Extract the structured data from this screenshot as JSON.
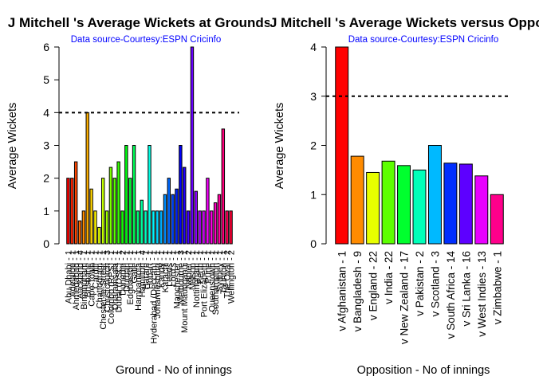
{
  "chart_data": [
    {
      "type": "bar",
      "title": "J Mitchell 's Average Wickets at Grounds",
      "subtitle": "Data source-Courtesy:ESPN Cricinfo",
      "xlabel": "Ground - No of innings",
      "ylabel": "Average Wickets",
      "ylim": [
        0,
        6
      ],
      "yticks": [
        "0",
        "1",
        "2",
        "3",
        "4",
        "5",
        "6"
      ],
      "reference_line": 4,
      "categories": [
        "Abu Dhabi - 1",
        "Adelaide - 1",
        "Ahmedabad - 1",
        "Auckland - 4",
        "Birmingham - 1",
        "Brisbane - 1",
        "Cape Town - 1",
        "Cardiff - 1",
        "Chattogram - 1",
        "Chester-le-Street - 1",
        "Christchurch - 3",
        "Colombo (RPS) - 1",
        "Dharamsala - 1",
        "Dubai (DSC) - 1",
        "Dunedin - 2",
        "Durban - 1",
        "Edgbaston - 1",
        "Galle - 1",
        "Hambantota - 1",
        "Hamilton - 4",
        "Harare - 1",
        "Hobart - 1",
        "Hyderabad (Deccan) - 1",
        "Johannesburg - 1",
        "Kandy - 1",
        "Karachi - 1",
        "Leeds - 1",
        "Lord's - 1",
        "Manchester - 1",
        "Melbourne - 3",
        "Mount Maunganui - 1",
        "Napier - 2",
        "Nelson - 1",
        "Nottingham - 1",
        "Perth - 1",
        "Port Elizabeth - 1",
        "Pune - 1",
        "Queenstown - 1",
        "Southampton - 1",
        "Sydney - 1",
        "Taunton - 1",
        "The Oval - 2",
        "Wellington - 2"
      ],
      "values": [
        2,
        2,
        2.5,
        0.7,
        1,
        4,
        1.67,
        1,
        0.5,
        2,
        1,
        2.33,
        2,
        2.5,
        1,
        3,
        2,
        3,
        1,
        1.33,
        1,
        3,
        1,
        1,
        1,
        1.5,
        2,
        1.5,
        1.67,
        3,
        2.33,
        1,
        6,
        1.6,
        1,
        1,
        2,
        1,
        1.25,
        1.5,
        3.5,
        1,
        1
      ],
      "colors": [
        "#FF0000",
        "#FF2300",
        "#FF4600",
        "#FF6900",
        "#FF8C00",
        "#FFB000",
        "#FFD300",
        "#FFF600",
        "#E5FF00",
        "#C2FF00",
        "#9FFF00",
        "#7BFF00",
        "#58FF00",
        "#35FF00",
        "#12FF00",
        "#00FF11",
        "#00FF34",
        "#00FF57",
        "#00FF7A",
        "#00FF9E",
        "#00FFC1",
        "#00FFE4",
        "#00F6FF",
        "#00D3FF",
        "#00B0FF",
        "#008DFF",
        "#0069FF",
        "#0046FF",
        "#0023FF",
        "#0000FF",
        "#2300FF",
        "#4600FF",
        "#6900FF",
        "#8C00FF",
        "#B000FF",
        "#D300FF",
        "#F600FF",
        "#FF00E5",
        "#FF00C2",
        "#FF009F",
        "#FF007B",
        "#FF0058",
        "#FF0035"
      ]
    },
    {
      "type": "bar",
      "title": "J Mitchell 's Average Wickets versus Opposition",
      "subtitle": "Data source-Courtesy:ESPN Cricinfo",
      "xlabel": "Opposition - No of innings",
      "ylabel": "Average Wickets",
      "ylim": [
        0,
        4
      ],
      "yticks": [
        "0",
        "1",
        "2",
        "3",
        "4"
      ],
      "reference_line": 3,
      "categories": [
        "v Afghanistan - 1",
        "v Bangladesh - 9",
        "v England - 22",
        "v India - 22",
        "v New Zealand - 17",
        "v Pakistan - 2",
        "v Scotland - 3",
        "v South Africa - 14",
        "v Sri Lanka - 16",
        "v West Indies - 13",
        "v Zimbabwe - 1"
      ],
      "values": [
        4,
        1.78,
        1.45,
        1.68,
        1.59,
        1.5,
        2,
        1.64,
        1.62,
        1.38,
        1
      ],
      "colors": [
        "#FF0000",
        "#FF8B00",
        "#E8FF00",
        "#5DFF00",
        "#00FF2E",
        "#00FFB9",
        "#00B9FF",
        "#002EFF",
        "#5D00FF",
        "#E800FF",
        "#FF008B"
      ]
    }
  ]
}
